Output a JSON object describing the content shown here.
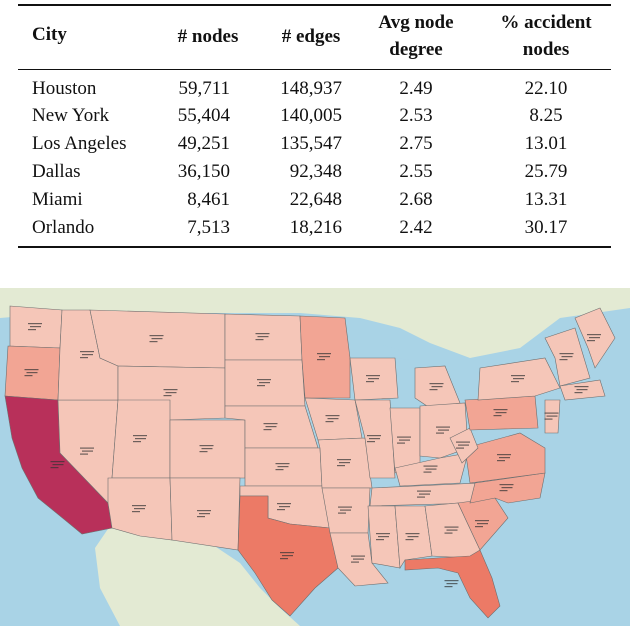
{
  "table": {
    "headers": {
      "city": "City",
      "nodes": "# nodes",
      "edges": "# edges",
      "degree_line1": "Avg node",
      "degree_line2": "degree",
      "accident_line1": "% accident",
      "accident_line2": "nodes"
    },
    "rows": [
      {
        "city": "Houston",
        "nodes": "59,711",
        "edges": "148,937",
        "degree": "2.49",
        "accident": "22.10"
      },
      {
        "city": "New York",
        "nodes": "55,404",
        "edges": "140,005",
        "degree": "2.53",
        "accident": "8.25"
      },
      {
        "city": "Los Angeles",
        "nodes": "49,251",
        "edges": "135,547",
        "degree": "2.75",
        "accident": "13.01"
      },
      {
        "city": "Dallas",
        "nodes": "36,150",
        "edges": "92,348",
        "degree": "2.55",
        "accident": "25.79"
      },
      {
        "city": "Miami",
        "nodes": "8,461",
        "edges": "22,648",
        "degree": "2.68",
        "accident": "13.31"
      },
      {
        "city": "Orlando",
        "nodes": "7,513",
        "edges": "18,216",
        "degree": "2.42",
        "accident": "30.17"
      }
    ]
  },
  "map": {
    "colors": {
      "ocean": "#a9d3e6",
      "land": "#e3ead3",
      "low": "#f5c6b8",
      "mid": "#f2a594",
      "high": "#ec7a66",
      "max": "#b8305a",
      "border": "#6e6e6e"
    }
  }
}
